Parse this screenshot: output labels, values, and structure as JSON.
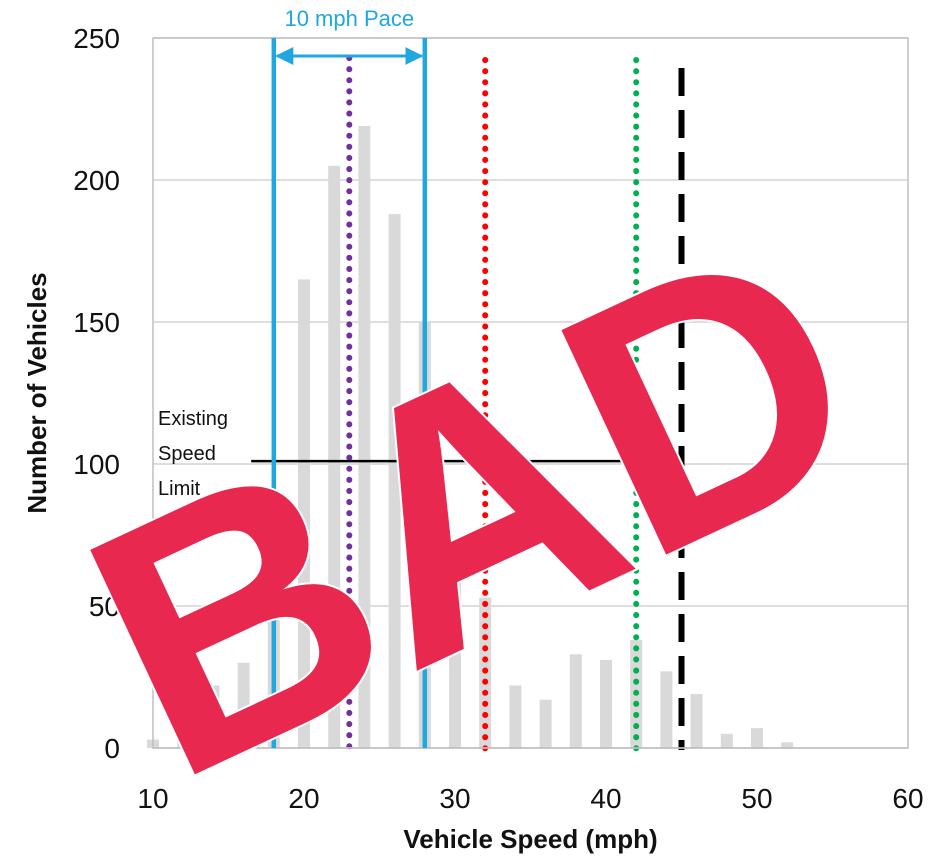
{
  "chart_data": {
    "type": "bar",
    "xlabel": "Vehicle Speed (mph)",
    "ylabel": "Number of Vehicles",
    "xlim": [
      10,
      60
    ],
    "ylim": [
      0,
      250
    ],
    "xticks": [
      10,
      20,
      30,
      40,
      50,
      60
    ],
    "yticks": [
      0,
      50,
      100,
      150,
      200,
      250
    ],
    "grid": "horizontal",
    "bar_color": "#d9d9d9",
    "x": [
      10,
      12,
      14,
      16,
      18,
      20,
      22,
      24,
      26,
      28,
      30,
      32,
      34,
      36,
      38,
      40,
      42,
      44,
      46,
      48,
      50,
      52,
      54
    ],
    "values": [
      3,
      11,
      22,
      30,
      45,
      165,
      205,
      219,
      188,
      150,
      59,
      53,
      22,
      17,
      33,
      31,
      38,
      27,
      19,
      5,
      7,
      2,
      0
    ],
    "annotations": {
      "pace": {
        "label": "10 mph Pace",
        "from": 18,
        "to": 28,
        "color": "#1fa7e0"
      },
      "reference_lines": [
        {
          "x": 23,
          "style": "dotted",
          "color": "#7030a0"
        },
        {
          "x": 32,
          "style": "dotted",
          "color": "#ff0000"
        },
        {
          "x": 42,
          "style": "dotted",
          "color": "#00b050"
        },
        {
          "x": 45,
          "style": "dashed",
          "color": "#000000"
        }
      ],
      "speed_limit": {
        "text_lines": [
          "Existing",
          "Speed",
          "Limit"
        ],
        "arrow_y": 101,
        "arrow_to_x": 45,
        "arrow_from_x": 16.5
      }
    },
    "stamp": {
      "text": "BAD",
      "color": "#e8284f"
    }
  }
}
